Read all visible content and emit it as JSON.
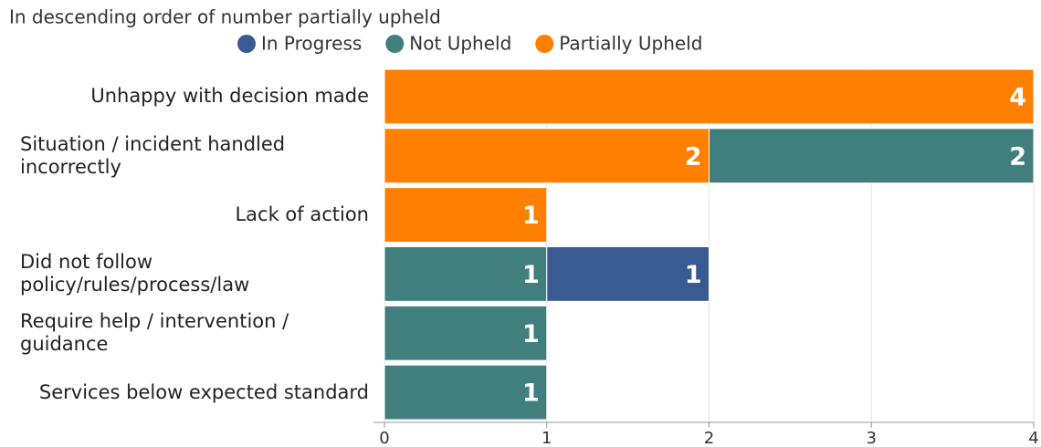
{
  "chart_data": {
    "type": "stacked-bar",
    "orientation": "horizontal",
    "subtitle": "In descending order of number partially upheld",
    "categories": [
      "Unhappy with decision made",
      "Situation / incident handled incorrectly",
      "Lack of action",
      "Did not follow policy/rules/process/law",
      "Require help / intervention / guidance",
      "Services below expected standard"
    ],
    "series": [
      {
        "name": "In Progress",
        "color": "#3a5b92",
        "values": [
          null,
          null,
          null,
          1,
          null,
          null
        ]
      },
      {
        "name": "Not Upheld",
        "color": "#417f7e",
        "values": [
          null,
          2,
          null,
          1,
          1,
          1
        ]
      },
      {
        "name": "Partially Upheld",
        "color": "#ff7f00",
        "values": [
          4,
          2,
          1,
          null,
          null,
          null
        ]
      }
    ],
    "xlim": [
      0,
      4
    ],
    "xticks": [
      0,
      1,
      2,
      3,
      4
    ],
    "grid": true,
    "legend": "top"
  }
}
